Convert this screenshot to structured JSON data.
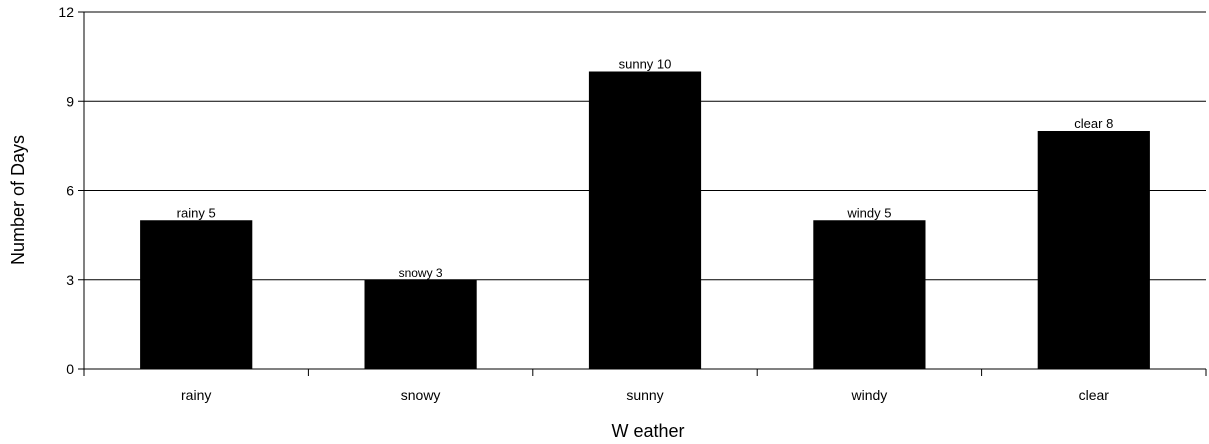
{
  "chart_data": {
    "type": "bar",
    "categories": [
      "rainy",
      "snowy",
      "sunny",
      "windy",
      "clear"
    ],
    "values": [
      5,
      3,
      10,
      5,
      8
    ],
    "data_labels": [
      "rainy 5",
      "snowy 3",
      "sunny 10",
      "windy 5",
      "clear 8"
    ],
    "xlabel": "W eather",
    "ylabel": "Number of Days",
    "ylim": [
      0,
      12
    ],
    "yticks": [
      0,
      3,
      6,
      9,
      12
    ],
    "grid": true,
    "bar_color": "#000000",
    "legend": "none"
  }
}
